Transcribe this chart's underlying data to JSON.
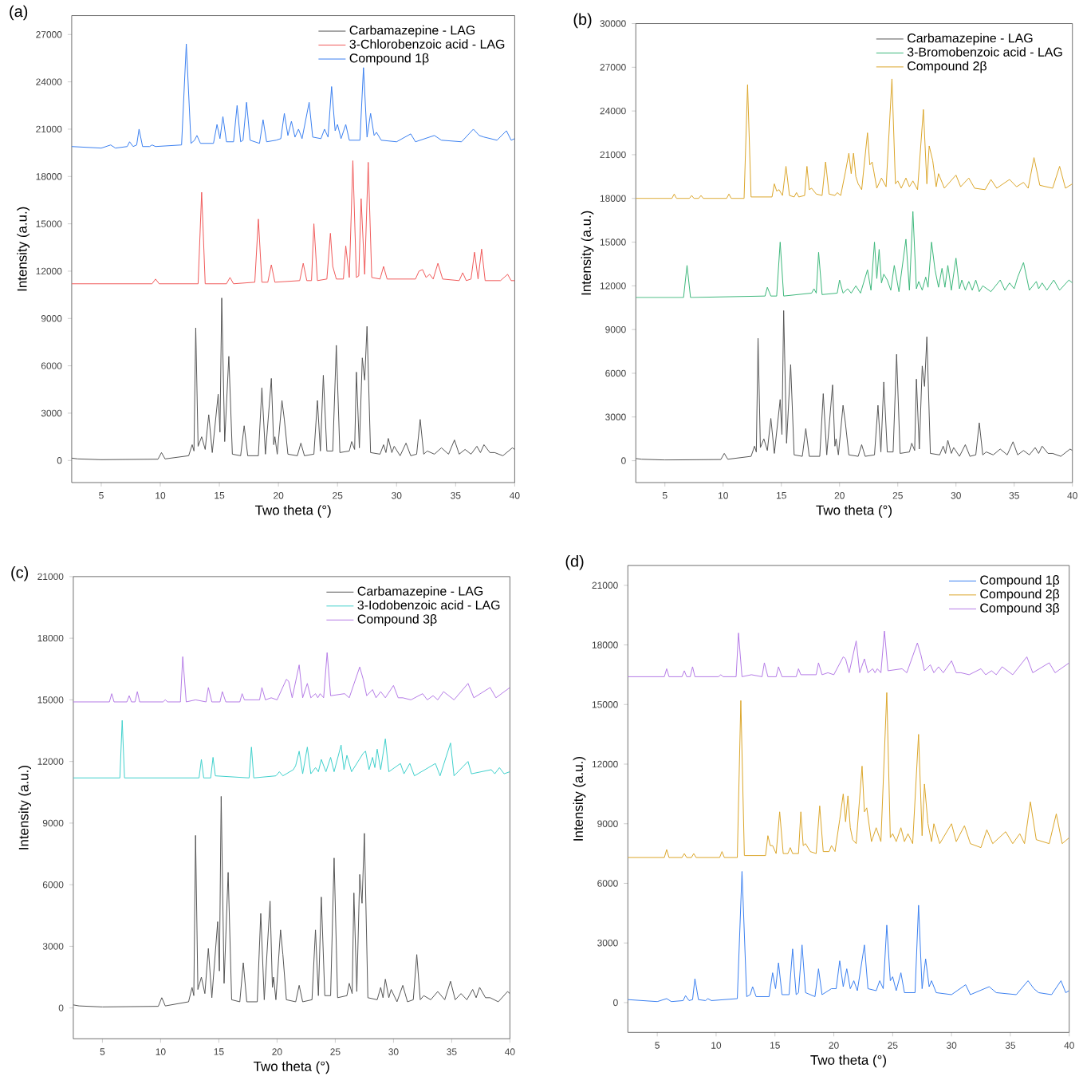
{
  "chart_data": [
    {
      "type": "line",
      "title": "(a)",
      "xlabel": "Two theta (°)",
      "ylabel": "Intensity (a.u.)",
      "xlim": [
        2.5,
        40
      ],
      "ylim": [
        -1400,
        28200
      ],
      "xticks": [
        5,
        10,
        15,
        20,
        25,
        30,
        35,
        40
      ],
      "yticks": [
        0,
        3000,
        6000,
        9000,
        12000,
        15000,
        18000,
        21000,
        24000,
        27000
      ],
      "legend": "top right",
      "series": [
        {
          "name": "Carbamazepine - LAG",
          "color": "#555555",
          "x": [
            2.5,
            3,
            5,
            9.8,
            10.1,
            10.4,
            12.4,
            12.7,
            12.85,
            13.0,
            13.2,
            13.5,
            13.8,
            14.1,
            14.4,
            14.9,
            15.05,
            15.2,
            15.45,
            15.8,
            16.1,
            16.8,
            17.1,
            17.4,
            18.3,
            18.6,
            18.9,
            19.4,
            19.6,
            19.7,
            19.9,
            20.3,
            20.5,
            20.8,
            21.6,
            21.9,
            22.2,
            23.0,
            23.3,
            23.55,
            23.8,
            24.1,
            24.6,
            24.9,
            25.2,
            26.0,
            26.2,
            26.45,
            26.6,
            26.85,
            27.1,
            27.3,
            27.5,
            27.8,
            28.6,
            28.9,
            29.1,
            29.3,
            29.6,
            29.8,
            30.3,
            30.8,
            31.2,
            31.7,
            32.0,
            32.3,
            32.6,
            33.2,
            33.8,
            34.4,
            34.9,
            35.3,
            35.8,
            36.3,
            36.8,
            37.1,
            37.4,
            37.9,
            38.3,
            39.0,
            39.8,
            40
          ],
          "values": [
            150,
            100,
            50,
            80,
            500,
            100,
            300,
            1000,
            600,
            8400,
            900,
            1500,
            700,
            2900,
            500,
            4200,
            1800,
            10300,
            1200,
            6600,
            400,
            300,
            2200,
            300,
            300,
            4600,
            400,
            5200,
            1000,
            1500,
            400,
            3800,
            2600,
            400,
            300,
            1100,
            300,
            400,
            3800,
            600,
            5400,
            600,
            600,
            7300,
            500,
            600,
            1200,
            700,
            5600,
            800,
            6500,
            5100,
            8500,
            500,
            400,
            1000,
            500,
            1400,
            500,
            900,
            300,
            1100,
            300,
            400,
            2600,
            400,
            600,
            400,
            800,
            400,
            1300,
            400,
            700,
            400,
            900,
            500,
            1000,
            500,
            500,
            300,
            800,
            700
          ]
        },
        {
          "name": "3-Chlorobenzoic acid - LAG",
          "color": "#f05a5a",
          "x": [
            2.5,
            9.3,
            9.6,
            9.9,
            13.2,
            13.5,
            13.8,
            15.6,
            15.9,
            16.2,
            18.0,
            18.3,
            18.6,
            19.1,
            19.4,
            19.7,
            21.8,
            22.1,
            22.4,
            22.8,
            23.0,
            23.3,
            24.1,
            24.4,
            24.6,
            24.9,
            25.5,
            25.7,
            26.0,
            26.3,
            26.6,
            26.8,
            27.0,
            27.3,
            27.6,
            27.9,
            28.6,
            28.9,
            29.2,
            31.6,
            31.9,
            32.2,
            32.5,
            32.8,
            33.1,
            33.5,
            33.9,
            35.3,
            35.6,
            35.9,
            36.3,
            36.6,
            36.9,
            37.2,
            37.5,
            38.8,
            39.1,
            39.4,
            39.7,
            40
          ],
          "values": [
            11200,
            11200,
            11500,
            11200,
            11200,
            17000,
            11200,
            11200,
            11600,
            11200,
            11300,
            15300,
            11300,
            11300,
            12400,
            11300,
            11400,
            12500,
            11400,
            11400,
            15000,
            11400,
            11500,
            14400,
            12300,
            11500,
            11500,
            13600,
            11600,
            19000,
            11600,
            11700,
            16600,
            11800,
            18900,
            11600,
            11500,
            12300,
            11500,
            11500,
            12000,
            12100,
            11600,
            11800,
            11500,
            12500,
            11500,
            11400,
            11900,
            11400,
            11500,
            13200,
            11500,
            13400,
            11400,
            11400,
            11600,
            11800,
            11400,
            11400
          ]
        },
        {
          "name": "Compound 1β",
          "color": "#3a7ff0",
          "x": [
            2.5,
            5,
            5.8,
            6.2,
            7.2,
            7.4,
            7.7,
            8.0,
            8.2,
            8.5,
            9.1,
            9.3,
            9.6,
            11.8,
            12.2,
            12.6,
            12.9,
            13.1,
            13.4,
            14.5,
            14.8,
            15.05,
            15.3,
            15.6,
            16.2,
            16.5,
            16.8,
            17.0,
            17.3,
            17.6,
            18.4,
            18.7,
            19.0,
            19.8,
            20.2,
            20.5,
            20.8,
            21.1,
            21.4,
            21.7,
            22.0,
            22.6,
            22.9,
            23.6,
            23.9,
            24.2,
            24.5,
            24.8,
            25.0,
            25.3,
            25.7,
            26.0,
            26.9,
            27.2,
            27.5,
            27.8,
            28.1,
            28.3,
            28.7,
            30.0,
            31.2,
            31.6,
            33.2,
            33.8,
            35.5,
            36.5,
            37.0,
            37.4,
            38.5,
            39.3,
            39.7,
            40
          ],
          "values": [
            19900,
            19800,
            20000,
            19800,
            19900,
            20200,
            19900,
            20000,
            21000,
            19900,
            19900,
            20000,
            19900,
            20000,
            26400,
            20100,
            20300,
            20600,
            20100,
            20100,
            21300,
            20400,
            21800,
            20200,
            20200,
            22500,
            20200,
            20300,
            22700,
            20300,
            20100,
            21600,
            20200,
            20300,
            20400,
            22000,
            20600,
            21500,
            20500,
            21000,
            20400,
            22700,
            20500,
            20400,
            21000,
            20500,
            23700,
            20900,
            21300,
            20400,
            21300,
            20300,
            20300,
            24900,
            20500,
            22000,
            20600,
            20800,
            20300,
            20200,
            20700,
            20200,
            20600,
            20300,
            20200,
            21000,
            20600,
            20500,
            20300,
            20900,
            20300,
            20400
          ]
        }
      ]
    },
    {
      "type": "line",
      "title": "(b)",
      "xlabel": "Two theta (°)",
      "ylabel": "Intensity (a.u.)",
      "xlim": [
        2.5,
        40
      ],
      "ylim": [
        -1500,
        30000
      ],
      "xticks": [
        5,
        10,
        15,
        20,
        25,
        30,
        35,
        40
      ],
      "yticks": [
        0,
        3000,
        6000,
        9000,
        12000,
        15000,
        18000,
        21000,
        24000,
        27000,
        30000
      ],
      "legend": "top right",
      "series": [
        {
          "name": "Carbamazepine - LAG",
          "color": "#555555",
          "x": [
            2.5,
            3,
            5,
            9.8,
            10.1,
            10.4,
            12.4,
            12.7,
            12.85,
            13.0,
            13.2,
            13.5,
            13.8,
            14.1,
            14.4,
            14.9,
            15.05,
            15.2,
            15.45,
            15.8,
            16.1,
            16.8,
            17.1,
            17.4,
            18.3,
            18.6,
            18.9,
            19.4,
            19.6,
            19.7,
            19.9,
            20.3,
            20.5,
            20.8,
            21.6,
            21.9,
            22.2,
            23.0,
            23.3,
            23.55,
            23.8,
            24.1,
            24.6,
            24.9,
            25.2,
            26.0,
            26.2,
            26.45,
            26.6,
            26.85,
            27.1,
            27.3,
            27.5,
            27.8,
            28.6,
            28.9,
            29.1,
            29.3,
            29.6,
            29.8,
            30.3,
            30.8,
            31.2,
            31.7,
            32.0,
            32.3,
            32.6,
            33.2,
            33.8,
            34.4,
            34.9,
            35.3,
            35.8,
            36.3,
            36.8,
            37.1,
            37.4,
            37.9,
            38.3,
            39.0,
            39.8,
            40
          ],
          "values": [
            150,
            100,
            50,
            80,
            500,
            100,
            300,
            1000,
            600,
            8400,
            900,
            1500,
            700,
            2900,
            500,
            4200,
            1800,
            10300,
            1200,
            6600,
            400,
            300,
            2200,
            300,
            300,
            4600,
            400,
            5200,
            1000,
            1500,
            400,
            3800,
            2600,
            400,
            300,
            1100,
            300,
            400,
            3800,
            600,
            5400,
            600,
            600,
            7300,
            500,
            600,
            1200,
            700,
            5600,
            800,
            6500,
            5100,
            8500,
            500,
            400,
            1000,
            500,
            1400,
            500,
            900,
            300,
            1100,
            300,
            400,
            2600,
            400,
            600,
            400,
            800,
            400,
            1300,
            400,
            700,
            400,
            900,
            500,
            1000,
            500,
            500,
            300,
            800,
            700
          ]
        },
        {
          "name": "3-Bromobenzoic acid - LAG",
          "color": "#3cb77a",
          "x": [
            2.5,
            6.6,
            6.9,
            7.2,
            13.6,
            13.8,
            14.1,
            14.6,
            14.9,
            15.2,
            17.6,
            17.8,
            18.0,
            18.2,
            18.5,
            19.8,
            20.0,
            20.3,
            20.7,
            21.0,
            21.4,
            21.8,
            22.4,
            22.7,
            23.0,
            23.2,
            23.4,
            23.6,
            23.8,
            24.1,
            24.4,
            24.7,
            25.1,
            25.7,
            26.0,
            26.3,
            26.6,
            26.8,
            27.1,
            27.4,
            27.6,
            27.9,
            28.2,
            28.5,
            28.8,
            29.05,
            29.3,
            29.6,
            30.0,
            30.3,
            30.5,
            30.8,
            31.1,
            31.4,
            31.7,
            32.0,
            32.3,
            33.0,
            33.8,
            34.2,
            34.6,
            35.0,
            35.3,
            35.8,
            36.3,
            36.9,
            37.1,
            37.4,
            37.8,
            38.4,
            38.9,
            39.7,
            40
          ],
          "values": [
            11200,
            11200,
            13400,
            11200,
            11300,
            11900,
            11300,
            11300,
            15000,
            11300,
            11500,
            11800,
            11500,
            14300,
            11400,
            11500,
            12400,
            11500,
            11800,
            11500,
            12000,
            11500,
            13100,
            11700,
            15000,
            12500,
            14500,
            12200,
            12800,
            12400,
            11700,
            13400,
            11600,
            15200,
            11700,
            17100,
            11800,
            12300,
            11700,
            12600,
            11900,
            15000,
            13100,
            11900,
            13200,
            11900,
            13400,
            11700,
            13900,
            11800,
            12400,
            11700,
            12300,
            11700,
            12400,
            11600,
            12000,
            11600,
            12400,
            11700,
            12200,
            11800,
            12600,
            13600,
            11700,
            12300,
            11800,
            12200,
            11700,
            12400,
            11700,
            12400,
            12200
          ]
        },
        {
          "name": "Compound 2β",
          "color": "#dba62a",
          "x": [
            2.5,
            5.6,
            5.8,
            6.0,
            7.1,
            7.3,
            7.5,
            7.9,
            8.1,
            8.3,
            10.3,
            10.5,
            10.7,
            11.8,
            12.1,
            12.4,
            14.2,
            14.4,
            14.6,
            14.8,
            15.1,
            15.4,
            15.7,
            16.1,
            16.3,
            16.5,
            17.0,
            17.2,
            17.4,
            17.6,
            18.0,
            18.5,
            18.8,
            19.1,
            19.6,
            19.8,
            20.1,
            20.5,
            20.8,
            21.0,
            21.2,
            21.4,
            21.6,
            21.9,
            22.4,
            22.6,
            22.8,
            23.2,
            23.6,
            24.0,
            24.5,
            24.8,
            25.0,
            25.3,
            25.7,
            26.0,
            26.3,
            26.7,
            27.2,
            27.5,
            27.7,
            28.0,
            28.3,
            28.5,
            29.0,
            30.0,
            30.4,
            31.1,
            31.6,
            32.5,
            33.0,
            33.5,
            34.6,
            35.2,
            35.8,
            36.2,
            36.7,
            37.2,
            38.3,
            38.9,
            39.4,
            40
          ],
          "values": [
            18000,
            18000,
            18300,
            18000,
            18000,
            18200,
            18000,
            18000,
            18200,
            18000,
            18000,
            18300,
            18000,
            18000,
            25800,
            18100,
            18100,
            19000,
            18500,
            18600,
            18200,
            20200,
            18200,
            18100,
            18400,
            18100,
            18200,
            20200,
            18600,
            18700,
            18300,
            18200,
            20500,
            18300,
            18200,
            18400,
            18200,
            19800,
            21100,
            19700,
            21100,
            19500,
            19000,
            18600,
            22500,
            20300,
            20500,
            18700,
            19400,
            18800,
            26200,
            19000,
            19200,
            18700,
            19400,
            18800,
            19200,
            18600,
            24100,
            19000,
            21600,
            20600,
            18800,
            19700,
            18700,
            19600,
            18800,
            19400,
            18700,
            18600,
            19300,
            18700,
            19300,
            18800,
            19100,
            18700,
            20800,
            18900,
            18700,
            20200,
            18700,
            19000
          ]
        }
      ]
    },
    {
      "type": "line",
      "title": "(c)",
      "xlabel": "Two theta (°)",
      "ylabel": "Intensity (a.u.)",
      "xlim": [
        2.5,
        40
      ],
      "ylim": [
        -1500,
        21000
      ],
      "xticks": [
        5,
        10,
        15,
        20,
        25,
        30,
        35,
        40
      ],
      "yticks": [
        0,
        3000,
        6000,
        9000,
        12000,
        15000,
        18000,
        21000
      ],
      "legend": "top right",
      "series": [
        {
          "name": "Carbamazepine - LAG",
          "color": "#555555",
          "x": [
            2.5,
            3,
            5,
            9.8,
            10.1,
            10.4,
            12.4,
            12.7,
            12.85,
            13.0,
            13.2,
            13.5,
            13.8,
            14.1,
            14.4,
            14.9,
            15.05,
            15.2,
            15.45,
            15.8,
            16.1,
            16.8,
            17.1,
            17.4,
            18.3,
            18.6,
            18.9,
            19.4,
            19.6,
            19.7,
            19.9,
            20.3,
            20.5,
            20.8,
            21.6,
            21.9,
            22.2,
            23.0,
            23.3,
            23.55,
            23.8,
            24.1,
            24.6,
            24.9,
            25.2,
            26.0,
            26.2,
            26.45,
            26.6,
            26.85,
            27.1,
            27.3,
            27.5,
            27.8,
            28.6,
            28.9,
            29.1,
            29.3,
            29.6,
            29.8,
            30.3,
            30.8,
            31.2,
            31.7,
            32.0,
            32.3,
            32.6,
            33.2,
            33.8,
            34.4,
            34.9,
            35.3,
            35.8,
            36.3,
            36.8,
            37.1,
            37.4,
            37.9,
            38.3,
            39.0,
            39.8,
            40
          ],
          "values": [
            150,
            100,
            50,
            80,
            500,
            100,
            300,
            1000,
            600,
            8400,
            900,
            1500,
            700,
            2900,
            500,
            4200,
            1800,
            10300,
            1200,
            6600,
            400,
            300,
            2200,
            300,
            300,
            4600,
            400,
            5200,
            1000,
            1500,
            400,
            3800,
            2600,
            400,
            300,
            1100,
            300,
            400,
            3800,
            600,
            5400,
            600,
            600,
            7300,
            500,
            600,
            1200,
            700,
            5600,
            800,
            6500,
            5100,
            8500,
            500,
            400,
            1000,
            500,
            1400,
            500,
            900,
            300,
            1100,
            300,
            400,
            2600,
            400,
            600,
            400,
            800,
            400,
            1300,
            400,
            700,
            400,
            900,
            500,
            1000,
            500,
            500,
            300,
            800,
            700
          ]
        },
        {
          "name": "3-Iodobenzoic acid - LAG",
          "color": "#3fd0cc",
          "x": [
            2.5,
            6.5,
            6.7,
            6.9,
            13.3,
            13.5,
            13.7,
            14.3,
            14.5,
            14.7,
            17.6,
            17.8,
            18.0,
            19.9,
            20.2,
            20.5,
            21.4,
            21.6,
            21.9,
            22.2,
            22.6,
            22.9,
            23.3,
            23.55,
            23.8,
            24.2,
            24.6,
            24.9,
            25.5,
            25.75,
            26.0,
            26.4,
            27.4,
            27.6,
            27.9,
            28.2,
            28.4,
            28.6,
            28.9,
            29.3,
            29.6,
            30.6,
            30.9,
            31.4,
            31.8,
            33.6,
            34.0,
            34.9,
            35.2,
            36.4,
            36.7,
            38.4,
            38.7,
            39.1,
            39.5,
            40
          ],
          "values": [
            11200,
            11200,
            14000,
            11200,
            11200,
            12100,
            11200,
            11200,
            12200,
            11300,
            11200,
            12700,
            11200,
            11300,
            11500,
            11300,
            11600,
            11800,
            12500,
            11400,
            12700,
            11400,
            11700,
            11500,
            12100,
            11500,
            12200,
            11500,
            12800,
            11600,
            12300,
            11500,
            12400,
            12500,
            11600,
            12200,
            11700,
            12600,
            11600,
            13100,
            11500,
            11900,
            11400,
            11900,
            11300,
            11900,
            11300,
            12900,
            11300,
            12000,
            11400,
            11600,
            11400,
            11700,
            11400,
            11500
          ]
        },
        {
          "name": "Compound 3β",
          "color": "#b57be6",
          "x": [
            2.5,
            5.6,
            5.8,
            6.0,
            7.1,
            7.3,
            7.5,
            7.8,
            8.0,
            8.2,
            10.2,
            10.4,
            10.6,
            11.7,
            11.9,
            12.2,
            13.0,
            13.9,
            14.1,
            14.4,
            15.1,
            15.3,
            15.6,
            16.8,
            17.0,
            17.2,
            17.4,
            18.5,
            18.7,
            19.0,
            19.5,
            20.0,
            20.8,
            21.0,
            21.3,
            21.9,
            22.2,
            22.6,
            22.9,
            23.3,
            23.5,
            23.7,
            24.0,
            24.3,
            24.6,
            25.8,
            26.2,
            27.1,
            27.4,
            27.7,
            28.2,
            28.5,
            28.9,
            29.3,
            30.0,
            30.4,
            30.8,
            31.5,
            32.5,
            32.9,
            33.4,
            33.8,
            34.3,
            35.2,
            36.4,
            36.9,
            38.3,
            38.8,
            40
          ],
          "values": [
            14900,
            14900,
            15300,
            14900,
            14900,
            15200,
            14900,
            14900,
            15400,
            14900,
            14900,
            15000,
            14900,
            14900,
            17100,
            14900,
            15000,
            14900,
            15600,
            14900,
            14900,
            15400,
            14900,
            14900,
            15300,
            15000,
            15000,
            15000,
            15600,
            15000,
            15100,
            15000,
            16000,
            15900,
            15100,
            16700,
            15100,
            15800,
            15100,
            15300,
            15100,
            15300,
            15100,
            17300,
            15200,
            15300,
            15100,
            16600,
            16000,
            15200,
            15500,
            15100,
            15400,
            15100,
            15700,
            15100,
            15100,
            15000,
            15300,
            15000,
            15200,
            15000,
            15400,
            15000,
            15800,
            15100,
            15600,
            15100,
            15600
          ]
        }
      ]
    },
    {
      "type": "line",
      "title": "(d)",
      "xlabel": "Two theta (°)",
      "ylabel": "Intensity (a.u.)",
      "xlim": [
        2.5,
        40
      ],
      "ylim": [
        -1500,
        22000
      ],
      "xticks": [
        5,
        10,
        15,
        20,
        25,
        30,
        35,
        40
      ],
      "yticks": [
        0,
        3000,
        6000,
        9000,
        12000,
        15000,
        18000,
        21000
      ],
      "legend": "top right",
      "series": [
        {
          "name": "Compound 1β",
          "color": "#3a7ff0",
          "x": [
            2.5,
            5,
            5.8,
            6.2,
            7.2,
            7.4,
            7.7,
            8.0,
            8.2,
            8.5,
            9.1,
            9.3,
            9.6,
            11.8,
            12.2,
            12.6,
            12.9,
            13.1,
            13.4,
            14.5,
            14.8,
            15.05,
            15.3,
            15.6,
            16.2,
            16.5,
            16.8,
            17.0,
            17.3,
            17.6,
            18.4,
            18.7,
            19.0,
            19.8,
            20.2,
            20.5,
            20.8,
            21.1,
            21.4,
            21.7,
            22.0,
            22.6,
            22.9,
            23.6,
            23.9,
            24.2,
            24.5,
            24.8,
            25.0,
            25.3,
            25.7,
            26.0,
            26.9,
            27.2,
            27.5,
            27.8,
            28.1,
            28.3,
            28.7,
            30.0,
            31.2,
            31.6,
            33.2,
            33.8,
            35.5,
            36.5,
            37.0,
            37.4,
            38.5,
            39.3,
            39.7,
            40
          ],
          "values": [
            150,
            50,
            200,
            50,
            100,
            350,
            100,
            150,
            1200,
            150,
            100,
            200,
            100,
            200,
            6600,
            300,
            400,
            800,
            300,
            300,
            1500,
            700,
            2000,
            400,
            400,
            2700,
            400,
            500,
            2900,
            500,
            300,
            1700,
            400,
            700,
            700,
            2100,
            800,
            1700,
            700,
            1100,
            600,
            2900,
            700,
            600,
            1100,
            700,
            3900,
            1100,
            1300,
            600,
            1500,
            500,
            500,
            4900,
            700,
            2200,
            800,
            1100,
            500,
            400,
            900,
            400,
            800,
            500,
            400,
            1100,
            700,
            500,
            400,
            1100,
            500,
            600
          ]
        },
        {
          "name": "Compound 2β",
          "color": "#dba62a",
          "x": [
            2.5,
            5.6,
            5.8,
            6.0,
            7.1,
            7.3,
            7.5,
            7.9,
            8.1,
            8.3,
            10.3,
            10.5,
            10.7,
            11.8,
            12.1,
            12.4,
            14.2,
            14.4,
            14.6,
            14.8,
            15.1,
            15.4,
            15.7,
            16.1,
            16.3,
            16.5,
            17.0,
            17.2,
            17.4,
            17.6,
            18.0,
            18.5,
            18.8,
            19.1,
            19.6,
            19.8,
            20.1,
            20.5,
            20.8,
            21.0,
            21.2,
            21.4,
            21.6,
            21.9,
            22.4,
            22.6,
            22.8,
            23.2,
            23.6,
            24.0,
            24.5,
            24.8,
            25.0,
            25.3,
            25.7,
            26.0,
            26.3,
            26.7,
            27.2,
            27.5,
            27.7,
            28.0,
            28.3,
            28.5,
            29.0,
            30.0,
            30.4,
            31.1,
            31.6,
            32.5,
            33.0,
            33.5,
            34.6,
            35.2,
            35.8,
            36.2,
            36.7,
            37.2,
            38.3,
            38.9,
            39.4,
            40
          ],
          "values": [
            7300,
            7300,
            7700,
            7300,
            7300,
            7500,
            7300,
            7300,
            7500,
            7300,
            7300,
            7600,
            7300,
            7300,
            15200,
            7400,
            7400,
            8400,
            7900,
            7900,
            7500,
            9600,
            7500,
            7500,
            7800,
            7500,
            7500,
            9600,
            7900,
            8000,
            7600,
            7500,
            9900,
            7600,
            7600,
            7900,
            7600,
            9200,
            10500,
            9100,
            10400,
            8800,
            8200,
            8000,
            11900,
            9600,
            9800,
            8100,
            8800,
            8100,
            15600,
            8300,
            8500,
            8100,
            8800,
            8100,
            8500,
            8000,
            13500,
            8400,
            11000,
            9000,
            8100,
            9000,
            8000,
            9000,
            8100,
            8900,
            8000,
            7800,
            8700,
            8000,
            8600,
            8000,
            8500,
            8000,
            10100,
            8200,
            8000,
            9500,
            8000,
            8300
          ]
        },
        {
          "name": "Compound 3β",
          "color": "#b57be6",
          "x": [
            2.5,
            5.6,
            5.8,
            6.0,
            7.1,
            7.3,
            7.5,
            7.8,
            8.0,
            8.2,
            10.2,
            10.4,
            10.6,
            11.7,
            11.9,
            12.2,
            13.0,
            13.9,
            14.1,
            14.4,
            15.1,
            15.3,
            15.6,
            16.8,
            17.0,
            17.2,
            17.4,
            18.5,
            18.7,
            19.0,
            19.5,
            20.0,
            20.8,
            21.0,
            21.3,
            21.9,
            22.2,
            22.6,
            22.9,
            23.3,
            23.5,
            23.7,
            24.0,
            24.3,
            24.6,
            25.8,
            26.2,
            27.1,
            27.4,
            27.7,
            28.2,
            28.5,
            28.9,
            29.3,
            30.0,
            30.4,
            30.8,
            31.5,
            32.5,
            32.9,
            33.4,
            33.8,
            34.3,
            35.2,
            36.4,
            36.9,
            38.3,
            38.8,
            40
          ],
          "values": [
            16400,
            16400,
            16800,
            16400,
            16400,
            16700,
            16400,
            16400,
            16900,
            16400,
            16400,
            16500,
            16400,
            16400,
            18600,
            16400,
            16500,
            16400,
            17100,
            16400,
            16400,
            16900,
            16400,
            16400,
            16800,
            16500,
            16500,
            16500,
            17100,
            16500,
            16600,
            16500,
            17400,
            17300,
            16600,
            18200,
            16600,
            17300,
            16600,
            16800,
            16600,
            16800,
            16600,
            18700,
            16700,
            16800,
            16600,
            18100,
            17500,
            16700,
            17000,
            16600,
            16900,
            16600,
            17200,
            16600,
            16600,
            16500,
            16800,
            16500,
            16700,
            16500,
            16900,
            16500,
            17400,
            16600,
            17100,
            16600,
            17100
          ]
        }
      ]
    }
  ]
}
